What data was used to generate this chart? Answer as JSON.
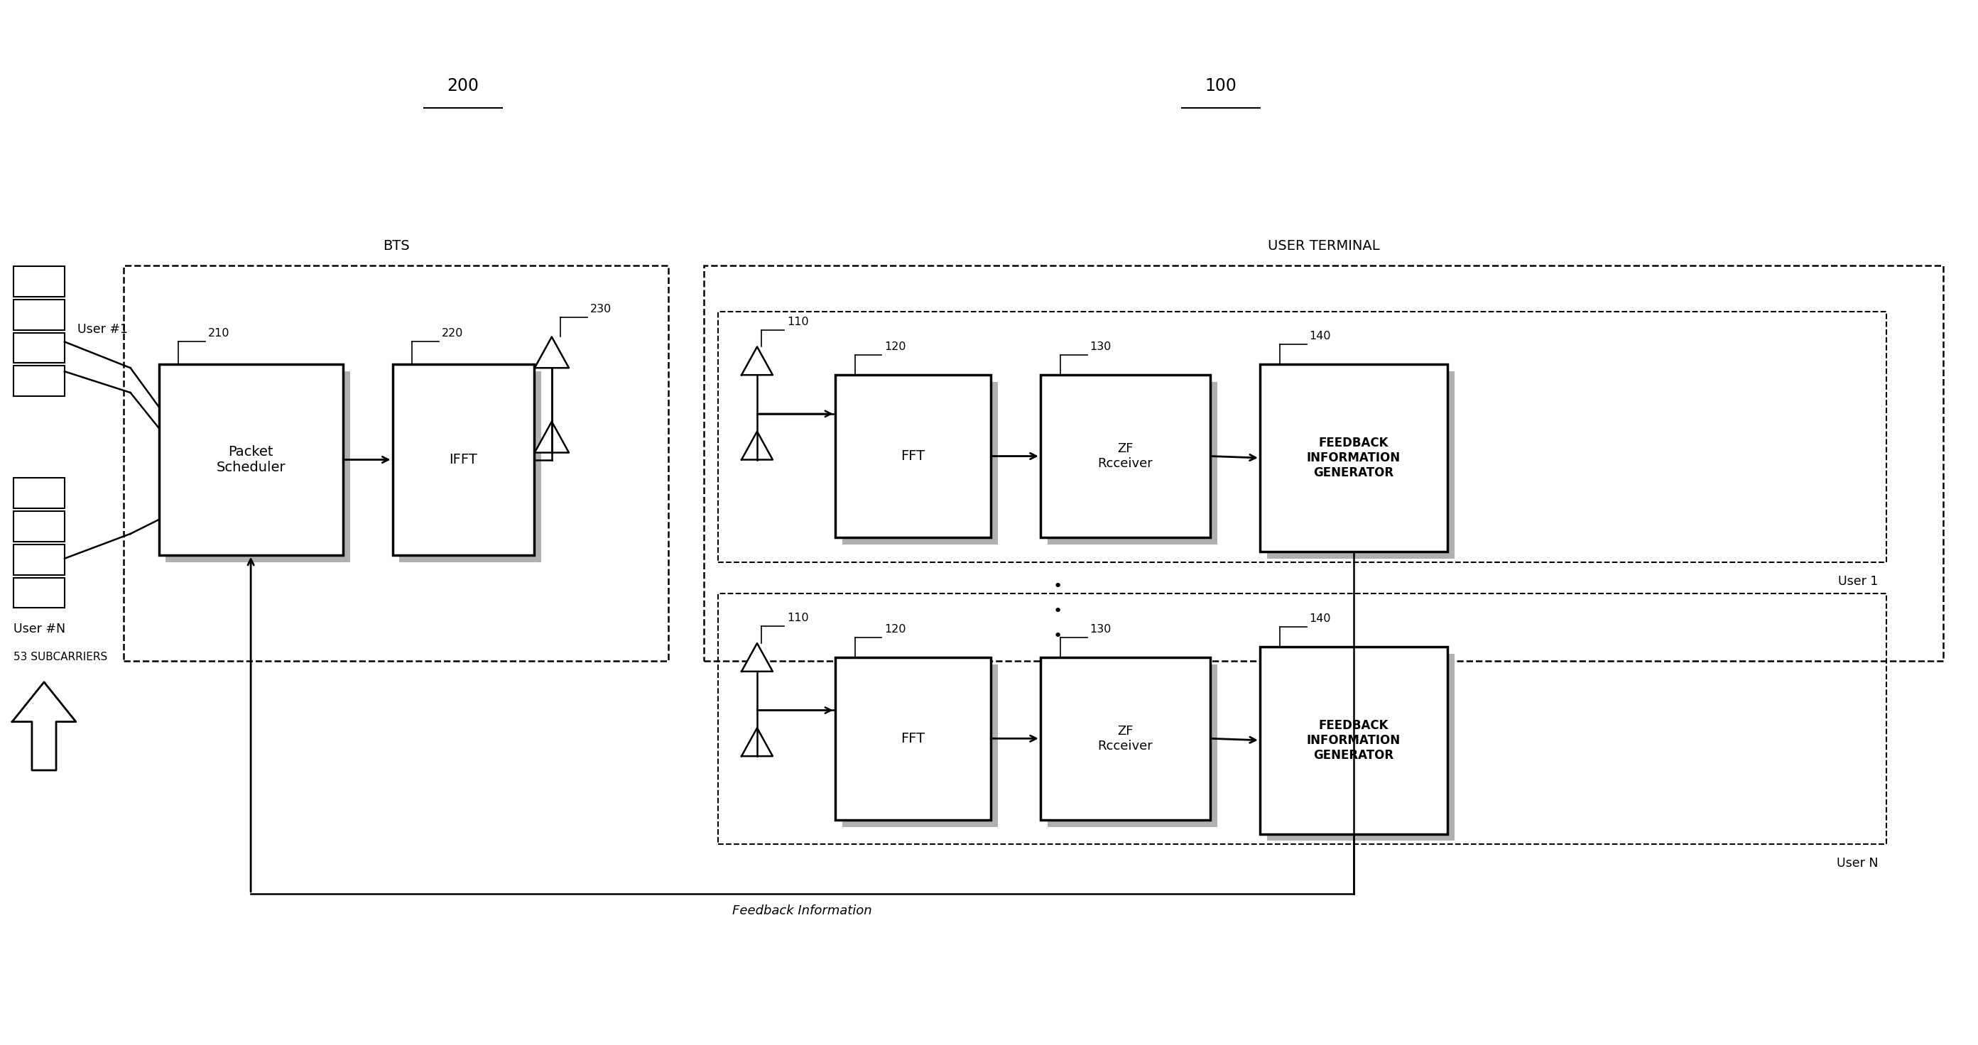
{
  "fig_width": 27.85,
  "fig_height": 14.72,
  "title_200": "200",
  "title_100": "100",
  "bts_label": "BTS",
  "user_terminal_label": "USER TERMINAL",
  "label_210": "210",
  "label_220": "220",
  "label_230": "230",
  "label_110a": "110",
  "label_120a": "120",
  "label_130a": "130",
  "label_140a": "140",
  "label_110b": "110",
  "label_120b": "120",
  "label_130b": "130",
  "label_140b": "140",
  "box_ps_text": "Packet\nScheduler",
  "box_ifft_text": "IFFT",
  "box_fft1_text": "FFT",
  "box_zf1_text": "ZF\nRcceiver",
  "box_fb1_text": "FEEDBACK\nINFORMATION\nGENERATOR",
  "box_fft2_text": "FFT",
  "box_zf2_text": "ZF\nRcceiver",
  "box_fb2_text": "FEEDBACK\nINFORMATION\nGENERATOR",
  "user1_label": "User #1",
  "userN_label": "User #N",
  "subcarriers_label": "53 SUBCARRIERS",
  "user1_tag": "User 1",
  "userN_tag": "User N",
  "feedback_label": "Feedback Information",
  "xlim": 27.85,
  "ylim": 14.72
}
